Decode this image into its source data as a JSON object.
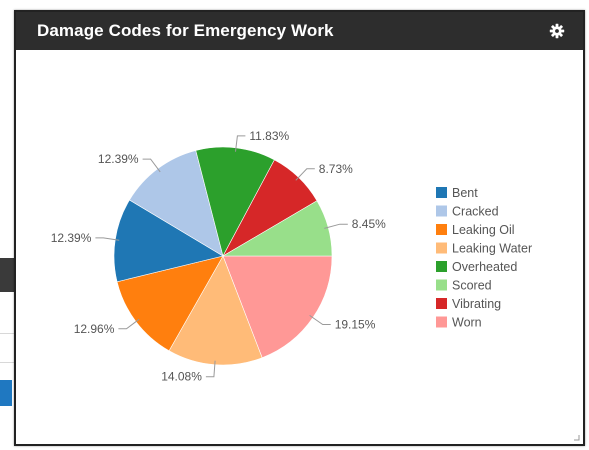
{
  "widget": {
    "title": "Damage Codes for Emergency Work",
    "settings_icon": "gear-icon"
  },
  "chart_data": {
    "type": "pie",
    "slices": [
      {
        "label": "Bent",
        "value": 12.39,
        "display": "12.39%",
        "color": "#1f77b4"
      },
      {
        "label": "Cracked",
        "value": 12.39,
        "display": "12.39%",
        "color": "#aec7e8"
      },
      {
        "label": "Leaking Oil",
        "value": 12.96,
        "display": "12.96%",
        "color": "#ff7f0e"
      },
      {
        "label": "Leaking Water",
        "value": 14.08,
        "display": "14.08%",
        "color": "#ffbb78"
      },
      {
        "label": "Overheated",
        "value": 11.83,
        "display": "11.83%",
        "color": "#2ca02c"
      },
      {
        "label": "Scored",
        "value": 8.45,
        "display": "8.45%",
        "color": "#98df8a"
      },
      {
        "label": "Vibrating",
        "value": 8.73,
        "display": "8.73%",
        "color": "#d62728"
      },
      {
        "label": "Worn",
        "value": 19.15,
        "display": "19.15%",
        "color": "#ff9896"
      }
    ],
    "draw_order": [
      "Worn",
      "Leaking Water",
      "Leaking Oil",
      "Bent",
      "Cracked",
      "Overheated",
      "Vibrating",
      "Scored"
    ],
    "legend_position": "right"
  }
}
